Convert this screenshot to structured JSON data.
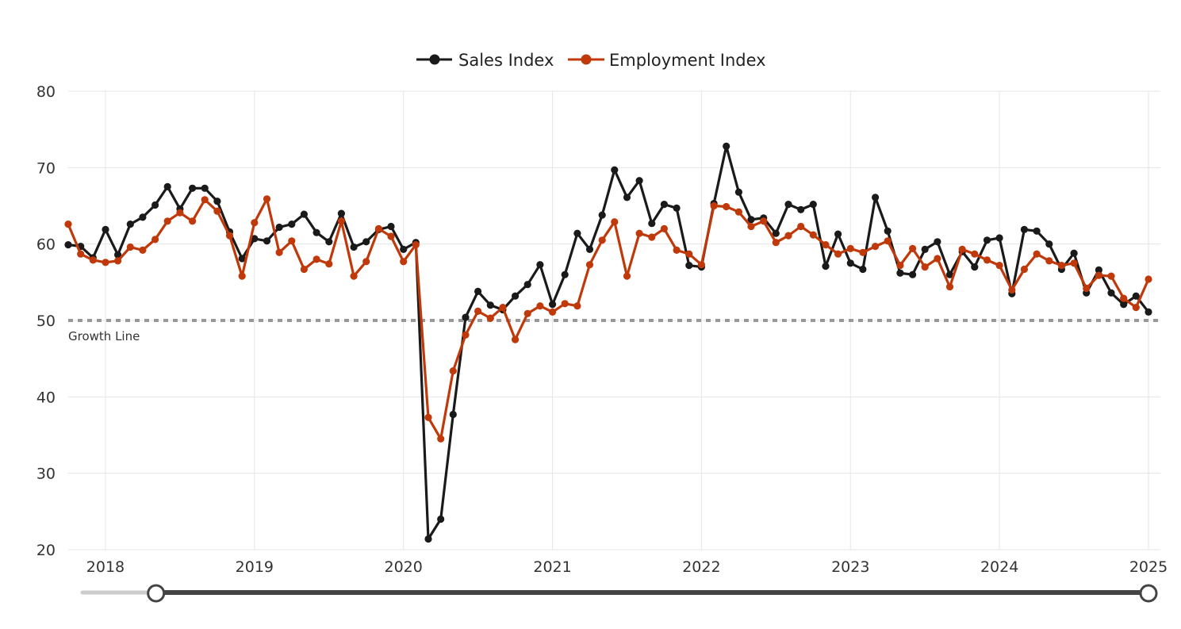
{
  "chart_data": {
    "type": "line",
    "title": "",
    "xlabel": "",
    "ylabel": "",
    "ylim": [
      20,
      80
    ],
    "yticks": [
      "20",
      "30",
      "40",
      "50",
      "60",
      "70",
      "80"
    ],
    "xticks": [
      "2018",
      "2019",
      "2020",
      "2021",
      "2022",
      "2023",
      "2024",
      "2025"
    ],
    "x_range": [
      "2017-10",
      "2025-01"
    ],
    "reference_line": {
      "value": 50,
      "label": "Growth Line"
    },
    "legend": {
      "position": "top-center"
    },
    "x": [
      "2017-10",
      "2017-11",
      "2017-12",
      "2018-01",
      "2018-02",
      "2018-03",
      "2018-04",
      "2018-05",
      "2018-06",
      "2018-07",
      "2018-08",
      "2018-09",
      "2018-10",
      "2018-11",
      "2018-12",
      "2019-01",
      "2019-02",
      "2019-03",
      "2019-04",
      "2019-05",
      "2019-06",
      "2019-07",
      "2019-08",
      "2019-09",
      "2019-10",
      "2019-11",
      "2019-12",
      "2020-01",
      "2020-02",
      "2020-03",
      "2020-04",
      "2020-05",
      "2020-06",
      "2020-07",
      "2020-08",
      "2020-09",
      "2020-10",
      "2020-11",
      "2020-12",
      "2021-01",
      "2021-02",
      "2021-03",
      "2021-04",
      "2021-05",
      "2021-06",
      "2021-07",
      "2021-08",
      "2021-09",
      "2021-10",
      "2021-11",
      "2021-12",
      "2022-01",
      "2022-02",
      "2022-03",
      "2022-04",
      "2022-05",
      "2022-06",
      "2022-07",
      "2022-08",
      "2022-09",
      "2022-10",
      "2022-11",
      "2022-12",
      "2023-01",
      "2023-02",
      "2023-03",
      "2023-04",
      "2023-05",
      "2023-06",
      "2023-07",
      "2023-08",
      "2023-09",
      "2023-10",
      "2023-11",
      "2023-12",
      "2024-01",
      "2024-02",
      "2024-03",
      "2024-04",
      "2024-05",
      "2024-06",
      "2024-07",
      "2024-08",
      "2024-09",
      "2024-10",
      "2024-11",
      "2024-12",
      "2025-01"
    ],
    "series": [
      {
        "name": "Sales Index",
        "color": "#1a1a1a",
        "values": [
          59.9,
          59.7,
          58.2,
          61.9,
          58.6,
          62.6,
          63.5,
          65.1,
          67.5,
          64.6,
          67.3,
          67.3,
          65.6,
          61.6,
          58.1,
          60.7,
          60.4,
          62.2,
          62.6,
          63.9,
          61.5,
          60.3,
          64.0,
          59.6,
          60.3,
          61.9,
          62.3,
          59.3,
          60.2,
          21.4,
          24.0,
          37.7,
          50.4,
          53.8,
          52.0,
          51.4,
          53.2,
          54.7,
          57.3,
          52.1,
          56.0,
          61.4,
          59.3,
          63.8,
          69.7,
          66.1,
          68.3,
          62.7,
          65.2,
          64.7,
          57.2,
          57.0,
          65.3,
          72.8,
          66.8,
          63.2,
          63.4,
          61.4,
          65.2,
          64.5,
          65.2,
          57.1,
          61.3,
          57.5,
          56.7,
          66.1,
          61.7,
          56.2,
          56.0,
          59.3,
          60.3,
          56.0,
          59.0,
          57.0,
          60.5,
          60.8,
          53.5,
          61.9,
          61.7,
          60.0,
          56.7,
          58.8,
          53.6,
          56.6,
          53.6,
          52.1,
          53.2,
          51.1
        ]
      },
      {
        "name": "Employment Index",
        "color": "#c0390a",
        "values": [
          62.6,
          58.7,
          57.9,
          57.6,
          57.8,
          59.6,
          59.2,
          60.6,
          63.0,
          64.1,
          63.0,
          65.8,
          64.3,
          61.1,
          55.8,
          62.8,
          65.9,
          58.9,
          60.4,
          56.7,
          58.0,
          57.4,
          63.0,
          55.8,
          57.7,
          62.0,
          61.0,
          57.7,
          59.9,
          37.3,
          34.5,
          43.4,
          48.1,
          51.2,
          50.3,
          51.7,
          47.5,
          50.9,
          51.9,
          51.1,
          52.2,
          51.9,
          57.3,
          60.5,
          62.9,
          55.8,
          61.4,
          60.9,
          62.0,
          59.2,
          58.7,
          57.3,
          65.0,
          64.9,
          64.2,
          62.3,
          63.0,
          60.2,
          61.1,
          62.3,
          61.2,
          59.9,
          58.7,
          59.4,
          58.9,
          59.7,
          60.4,
          57.2,
          59.4,
          57.0,
          58.1,
          54.4,
          59.3,
          58.7,
          57.9,
          57.2,
          54.0,
          56.7,
          58.7,
          57.8,
          57.2,
          57.5,
          54.2,
          55.9,
          55.8,
          52.9,
          51.7,
          55.4
        ]
      }
    ]
  },
  "range_slider": {
    "start": "2018-04",
    "end": "2025-01"
  }
}
